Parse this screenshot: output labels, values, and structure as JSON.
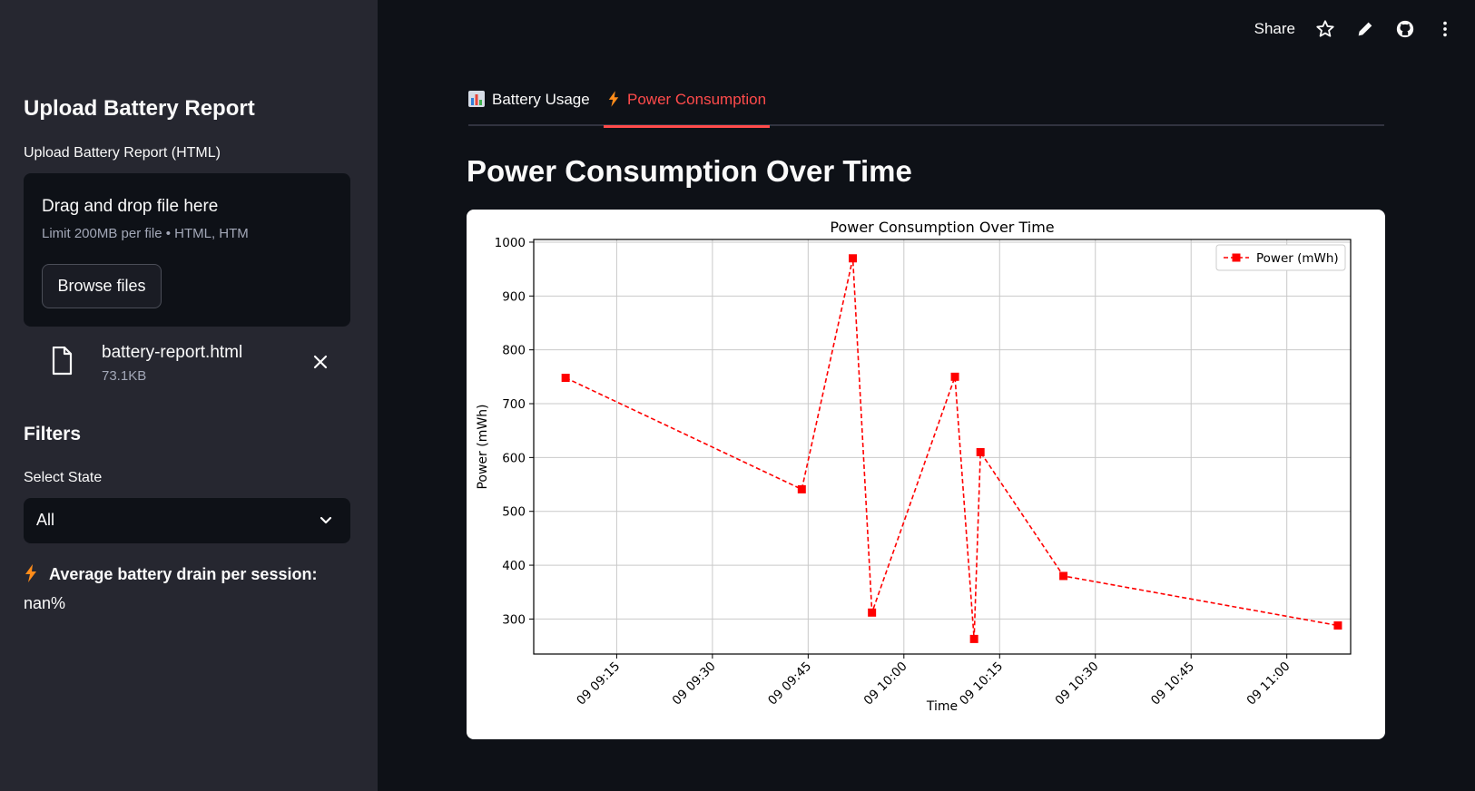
{
  "sidebar": {
    "title": "Upload Battery Report",
    "upload_label": "Upload Battery Report (HTML)",
    "dropzone": {
      "title": "Drag and drop file here",
      "limit": "Limit 200MB per file • HTML, HTM",
      "browse_label": "Browse files"
    },
    "file": {
      "name": "battery-report.html",
      "size": "73.1KB"
    },
    "filters_title": "Filters",
    "select_label": "Select State",
    "select_value": "All",
    "drain_label": "Average battery drain per session:",
    "drain_value": "nan%"
  },
  "topbar": {
    "share_label": "Share"
  },
  "tabs": [
    {
      "label": "Battery Usage",
      "icon": "bar-chart-icon"
    },
    {
      "label": "Power Consumption",
      "icon": "lightning-icon",
      "active": true
    }
  ],
  "page_title": "Power Consumption Over Time",
  "colors": {
    "accent": "#ff4b4b",
    "sidebar_bg": "#262730",
    "main_bg": "#0e1117",
    "series": "#ff0000"
  },
  "chart_data": {
    "type": "line",
    "title": "Power Consumption Over Time",
    "xlabel": "Time",
    "ylabel": "Power (mWh)",
    "x_ticks": [
      "09 09:15",
      "09 09:30",
      "09 09:45",
      "09 10:00",
      "09 10:15",
      "09 10:30",
      "09 10:45",
      "09 11:00"
    ],
    "y_ticks": [
      300,
      400,
      500,
      600,
      700,
      800,
      900,
      1000
    ],
    "xlim": [
      "09:02",
      "11:10"
    ],
    "ylim": [
      235,
      1005
    ],
    "grid": true,
    "legend": "top-right",
    "series": [
      {
        "name": "Power (mWh)",
        "style": "dashed-square-markers",
        "color": "#ff0000",
        "points": [
          {
            "x": "09:07",
            "y": 748
          },
          {
            "x": "09:44",
            "y": 541
          },
          {
            "x": "09:52",
            "y": 970
          },
          {
            "x": "09:55",
            "y": 312
          },
          {
            "x": "10:08",
            "y": 750
          },
          {
            "x": "10:11",
            "y": 263
          },
          {
            "x": "10:12",
            "y": 610
          },
          {
            "x": "10:25",
            "y": 380
          },
          {
            "x": "11:08",
            "y": 288
          }
        ]
      }
    ]
  }
}
